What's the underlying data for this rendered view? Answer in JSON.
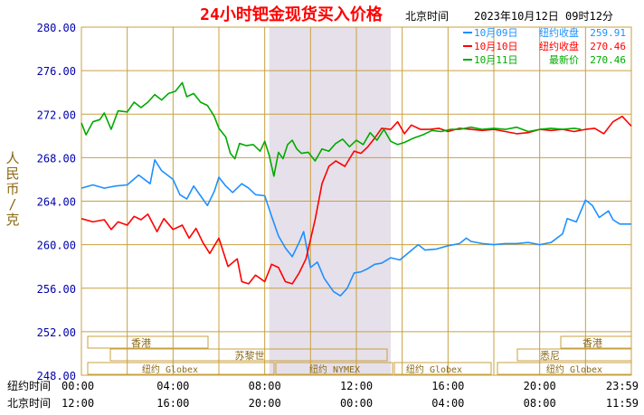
{
  "header": {
    "title": "24小时钯金现货买入价格",
    "zone": "北京时间",
    "timestamp": "2023年10月12日 09时12分"
  },
  "legend": [
    {
      "date": "10月09日",
      "label": "纽约收盘",
      "value": "259.91",
      "color": "#1e90ff"
    },
    {
      "date": "10月10日",
      "label": "纽约收盘",
      "value": "270.46",
      "color": "#ff0000"
    },
    {
      "date": "10月11日",
      "label": "最新价",
      "value": "270.46",
      "color": "#00aa00"
    }
  ],
  "y_axis_title": [
    "人",
    "民",
    "币",
    "/",
    "克"
  ],
  "x_row_labels": {
    "ny": "纽约时间",
    "bj": "北京时间"
  },
  "x_ticks_ny": [
    "00:00",
    "04:00",
    "08:00",
    "12:00",
    "16:00",
    "20:00",
    "23:59"
  ],
  "x_ticks_bj": [
    "12:00",
    "16:00",
    "20:00",
    "00:00",
    "04:00",
    "08:00",
    "11:59"
  ],
  "sessions": {
    "hongkong": "香港",
    "sydney": "悉尼",
    "zurich": "苏黎世",
    "ny_globex": "纽约 Globex",
    "ny_nymex": "纽约 NYMEX"
  },
  "colors": {
    "grid": "#c8a040",
    "axis_text": "#0000aa",
    "title": "#ff0000",
    "shade": "#e6e0ea",
    "label_text": "#8b6914"
  },
  "chart_data": {
    "type": "line",
    "title": "24小时钯金现货买入价格",
    "ylabel": "人民币/克",
    "ylim": [
      248,
      280
    ],
    "y_ticks": [
      "248.00",
      "252.00",
      "256.00",
      "260.00",
      "264.00",
      "268.00",
      "272.00",
      "276.00",
      "280.00"
    ],
    "x_range_hours": [
      0,
      24
    ],
    "shaded_hours": [
      8.2,
      13.5
    ],
    "series": [
      {
        "name": "10月09日",
        "color": "#1e90ff",
        "points": [
          [
            0,
            265.2
          ],
          [
            0.5,
            265.5
          ],
          [
            1,
            265.2
          ],
          [
            1.5,
            265.4
          ],
          [
            2,
            265.5
          ],
          [
            2.5,
            266.4
          ],
          [
            3,
            265.6
          ],
          [
            3.2,
            267.8
          ],
          [
            3.5,
            266.8
          ],
          [
            4,
            266.0
          ],
          [
            4.3,
            264.6
          ],
          [
            4.6,
            264.2
          ],
          [
            4.9,
            265.4
          ],
          [
            5.2,
            264.5
          ],
          [
            5.5,
            263.6
          ],
          [
            5.8,
            264.9
          ],
          [
            6,
            266.2
          ],
          [
            6.3,
            265.4
          ],
          [
            6.6,
            264.8
          ],
          [
            7,
            265.6
          ],
          [
            7.3,
            265.2
          ],
          [
            7.6,
            264.6
          ],
          [
            8,
            264.5
          ],
          [
            8.3,
            262.6
          ],
          [
            8.6,
            260.8
          ],
          [
            8.9,
            259.7
          ],
          [
            9.2,
            258.9
          ],
          [
            9.5,
            260.2
          ],
          [
            9.7,
            261.2
          ],
          [
            10,
            257.9
          ],
          [
            10.3,
            258.4
          ],
          [
            10.6,
            256.9
          ],
          [
            11,
            255.7
          ],
          [
            11.3,
            255.3
          ],
          [
            11.6,
            256.0
          ],
          [
            11.9,
            257.4
          ],
          [
            12.2,
            257.5
          ],
          [
            12.5,
            257.8
          ],
          [
            12.8,
            258.2
          ],
          [
            13.1,
            258.3
          ],
          [
            13.5,
            258.8
          ],
          [
            13.9,
            258.6
          ],
          [
            14.3,
            259.3
          ],
          [
            14.7,
            260.0
          ],
          [
            15,
            259.5
          ],
          [
            15.5,
            259.6
          ],
          [
            16,
            259.9
          ],
          [
            16.5,
            260.1
          ],
          [
            16.8,
            260.6
          ],
          [
            17,
            260.3
          ],
          [
            17.5,
            260.1
          ],
          [
            18,
            260.0
          ],
          [
            18.5,
            260.1
          ],
          [
            19,
            260.1
          ],
          [
            19.5,
            260.2
          ],
          [
            20,
            260.0
          ],
          [
            20.5,
            260.2
          ],
          [
            21,
            261.0
          ],
          [
            21.2,
            262.4
          ],
          [
            21.6,
            262.1
          ],
          [
            22,
            264.1
          ],
          [
            22.3,
            263.6
          ],
          [
            22.6,
            262.5
          ],
          [
            23,
            263.1
          ],
          [
            23.2,
            262.3
          ],
          [
            23.5,
            261.9
          ],
          [
            24,
            261.9
          ]
        ]
      },
      {
        "name": "10月10日",
        "color": "#ff0000",
        "points": [
          [
            0,
            262.4
          ],
          [
            0.5,
            262.1
          ],
          [
            1,
            262.3
          ],
          [
            1.3,
            261.4
          ],
          [
            1.6,
            262.1
          ],
          [
            2,
            261.8
          ],
          [
            2.3,
            262.6
          ],
          [
            2.6,
            262.3
          ],
          [
            2.9,
            262.8
          ],
          [
            3.3,
            261.2
          ],
          [
            3.6,
            262.4
          ],
          [
            4,
            261.4
          ],
          [
            4.4,
            261.8
          ],
          [
            4.7,
            260.6
          ],
          [
            5,
            261.5
          ],
          [
            5.3,
            260.2
          ],
          [
            5.6,
            259.2
          ],
          [
            6,
            260.6
          ],
          [
            6.4,
            258.0
          ],
          [
            6.8,
            258.7
          ],
          [
            7,
            256.6
          ],
          [
            7.3,
            256.4
          ],
          [
            7.6,
            257.2
          ],
          [
            8,
            256.6
          ],
          [
            8.3,
            258.2
          ],
          [
            8.6,
            257.9
          ],
          [
            8.9,
            256.6
          ],
          [
            9.2,
            256.4
          ],
          [
            9.5,
            257.4
          ],
          [
            9.8,
            258.7
          ],
          [
            10.2,
            262.3
          ],
          [
            10.5,
            265.6
          ],
          [
            10.8,
            267.2
          ],
          [
            11.1,
            267.7
          ],
          [
            11.5,
            267.2
          ],
          [
            11.9,
            268.6
          ],
          [
            12.2,
            268.4
          ],
          [
            12.5,
            269.0
          ],
          [
            12.8,
            269.8
          ],
          [
            13.1,
            270.7
          ],
          [
            13.5,
            270.6
          ],
          [
            13.8,
            271.3
          ],
          [
            14.1,
            270.2
          ],
          [
            14.4,
            271.0
          ],
          [
            14.8,
            270.6
          ],
          [
            15.2,
            270.6
          ],
          [
            15.6,
            270.7
          ],
          [
            16,
            270.4
          ],
          [
            16.5,
            270.7
          ],
          [
            17,
            270.6
          ],
          [
            17.5,
            270.5
          ],
          [
            18,
            270.6
          ],
          [
            18.5,
            270.4
          ],
          [
            19,
            270.2
          ],
          [
            19.5,
            270.3
          ],
          [
            20,
            270.6
          ],
          [
            20.5,
            270.5
          ],
          [
            21,
            270.6
          ],
          [
            21.5,
            270.4
          ],
          [
            22,
            270.6
          ],
          [
            22.4,
            270.7
          ],
          [
            22.8,
            270.2
          ],
          [
            23.2,
            271.3
          ],
          [
            23.6,
            271.8
          ],
          [
            24,
            270.9
          ]
        ]
      },
      {
        "name": "10月11日",
        "color": "#00aa00",
        "points": [
          [
            0,
            271.2
          ],
          [
            0.2,
            270.1
          ],
          [
            0.5,
            271.3
          ],
          [
            0.8,
            271.5
          ],
          [
            1,
            272.1
          ],
          [
            1.3,
            270.6
          ],
          [
            1.6,
            272.3
          ],
          [
            2,
            272.2
          ],
          [
            2.3,
            273.1
          ],
          [
            2.6,
            272.6
          ],
          [
            2.9,
            273.1
          ],
          [
            3.2,
            273.8
          ],
          [
            3.5,
            273.3
          ],
          [
            3.8,
            273.9
          ],
          [
            4.1,
            274.1
          ],
          [
            4.4,
            274.9
          ],
          [
            4.6,
            273.6
          ],
          [
            4.9,
            273.9
          ],
          [
            5.2,
            273.1
          ],
          [
            5.5,
            272.8
          ],
          [
            5.8,
            271.8
          ],
          [
            6,
            270.7
          ],
          [
            6.3,
            269.9
          ],
          [
            6.5,
            268.4
          ],
          [
            6.7,
            267.9
          ],
          [
            6.9,
            269.3
          ],
          [
            7.2,
            269.1
          ],
          [
            7.5,
            269.2
          ],
          [
            7.8,
            268.6
          ],
          [
            8,
            269.5
          ],
          [
            8.2,
            268.2
          ],
          [
            8.4,
            266.3
          ],
          [
            8.6,
            268.5
          ],
          [
            8.8,
            267.9
          ],
          [
            9,
            269.2
          ],
          [
            9.2,
            269.6
          ],
          [
            9.4,
            268.8
          ],
          [
            9.6,
            268.4
          ],
          [
            9.9,
            268.5
          ],
          [
            10.2,
            267.7
          ],
          [
            10.5,
            268.8
          ],
          [
            10.8,
            268.6
          ],
          [
            11.1,
            269.3
          ],
          [
            11.4,
            269.7
          ],
          [
            11.7,
            269.0
          ],
          [
            12,
            269.6
          ],
          [
            12.3,
            269.2
          ],
          [
            12.6,
            270.3
          ],
          [
            12.9,
            269.6
          ],
          [
            13.2,
            270.6
          ],
          [
            13.5,
            269.5
          ],
          [
            13.8,
            269.2
          ],
          [
            14.1,
            269.4
          ],
          [
            14.5,
            269.8
          ],
          [
            14.9,
            270.1
          ],
          [
            15.3,
            270.5
          ],
          [
            15.7,
            270.4
          ],
          [
            16.1,
            270.6
          ],
          [
            16.5,
            270.6
          ],
          [
            17,
            270.8
          ],
          [
            17.5,
            270.6
          ],
          [
            18,
            270.7
          ],
          [
            18.5,
            270.6
          ],
          [
            19,
            270.8
          ],
          [
            19.5,
            270.4
          ],
          [
            20,
            270.6
          ],
          [
            20.5,
            270.7
          ],
          [
            21,
            270.6
          ],
          [
            21.5,
            270.7
          ],
          [
            21.8,
            270.6
          ]
        ]
      }
    ]
  }
}
